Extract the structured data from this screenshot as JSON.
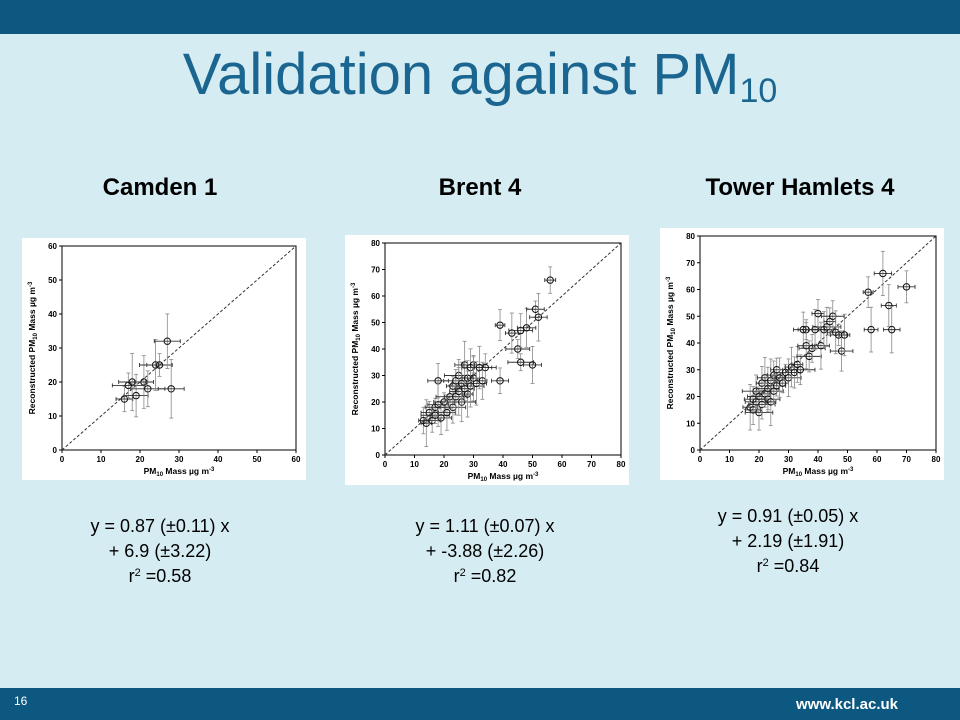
{
  "slide": {
    "title_main": "Validation against PM",
    "title_sub": "10",
    "page_number": "16",
    "url": "www.kcl.ac.uk"
  },
  "chart_data": [
    {
      "type": "scatter",
      "title": "Camden 1",
      "xlabel_pre": "PM",
      "xlabel_sub": "10",
      "xlabel_post": " Mass µg m",
      "xlabel_sup": "-3",
      "ylabel_pre": "Reconstructed PM",
      "ylabel_sub": "10",
      "ylabel_post": " Mass µg m",
      "ylabel_sup": "-3",
      "xlim": [
        0,
        60
      ],
      "ylim": [
        0,
        60
      ],
      "xticks": [
        0,
        10,
        20,
        30,
        40,
        50,
        60
      ],
      "yticks": [
        0,
        10,
        20,
        30,
        40,
        50,
        60
      ],
      "one_to_one_line": true,
      "points": [
        {
          "x": 16,
          "y": 15
        },
        {
          "x": 17,
          "y": 19
        },
        {
          "x": 18,
          "y": 20
        },
        {
          "x": 19,
          "y": 16
        },
        {
          "x": 21,
          "y": 20
        },
        {
          "x": 22,
          "y": 18
        },
        {
          "x": 24,
          "y": 25
        },
        {
          "x": 25,
          "y": 25
        },
        {
          "x": 27,
          "y": 32
        },
        {
          "x": 28,
          "y": 18
        }
      ],
      "equation": {
        "line1": "y = 0.87 (±0.11) x",
        "line2": "+ 6.9 (±3.22)",
        "r_pre": "r",
        "r_sup": "2",
        "r_post": " =0.58"
      }
    },
    {
      "type": "scatter",
      "title": "Brent 4",
      "xlabel_pre": "PM",
      "xlabel_sub": "10",
      "xlabel_post": " Mass µg m",
      "xlabel_sup": "-3",
      "ylabel_pre": "Reconstructed PM",
      "ylabel_sub": "10",
      "ylabel_post": " Mass µg m",
      "ylabel_sup": "-3",
      "xlim": [
        0,
        80
      ],
      "ylim": [
        0,
        80
      ],
      "xticks": [
        0,
        10,
        20,
        30,
        40,
        50,
        60,
        70,
        80
      ],
      "yticks": [
        0,
        10,
        20,
        30,
        40,
        50,
        60,
        70,
        80
      ],
      "one_to_one_line": true,
      "points": [
        {
          "x": 13,
          "y": 13
        },
        {
          "x": 14,
          "y": 12
        },
        {
          "x": 15,
          "y": 16
        },
        {
          "x": 16,
          "y": 13
        },
        {
          "x": 17,
          "y": 15
        },
        {
          "x": 17,
          "y": 18
        },
        {
          "x": 18,
          "y": 28
        },
        {
          "x": 18,
          "y": 19
        },
        {
          "x": 19,
          "y": 14
        },
        {
          "x": 20,
          "y": 20
        },
        {
          "x": 21,
          "y": 16
        },
        {
          "x": 22,
          "y": 22
        },
        {
          "x": 23,
          "y": 18
        },
        {
          "x": 23,
          "y": 26
        },
        {
          "x": 24,
          "y": 28
        },
        {
          "x": 24,
          "y": 22
        },
        {
          "x": 25,
          "y": 30
        },
        {
          "x": 25,
          "y": 24
        },
        {
          "x": 26,
          "y": 20
        },
        {
          "x": 26,
          "y": 27
        },
        {
          "x": 27,
          "y": 34
        },
        {
          "x": 27,
          "y": 25
        },
        {
          "x": 28,
          "y": 29
        },
        {
          "x": 28,
          "y": 23
        },
        {
          "x": 29,
          "y": 33
        },
        {
          "x": 29,
          "y": 26
        },
        {
          "x": 30,
          "y": 34
        },
        {
          "x": 30,
          "y": 29
        },
        {
          "x": 31,
          "y": 27
        },
        {
          "x": 32,
          "y": 33
        },
        {
          "x": 33,
          "y": 28
        },
        {
          "x": 34,
          "y": 33
        },
        {
          "x": 39,
          "y": 49
        },
        {
          "x": 39,
          "y": 28
        },
        {
          "x": 43,
          "y": 46
        },
        {
          "x": 45,
          "y": 40
        },
        {
          "x": 46,
          "y": 47
        },
        {
          "x": 46,
          "y": 35
        },
        {
          "x": 48,
          "y": 48
        },
        {
          "x": 50,
          "y": 34
        },
        {
          "x": 51,
          "y": 55
        },
        {
          "x": 52,
          "y": 52
        },
        {
          "x": 56,
          "y": 66
        }
      ],
      "equation": {
        "line1": "y = 1.11 (±0.07) x",
        "line2": "+ -3.88 (±2.26)",
        "r_pre": "r",
        "r_sup": "2",
        "r_post": " =0.82"
      }
    },
    {
      "type": "scatter",
      "title": "Tower Hamlets 4",
      "xlabel_pre": "PM",
      "xlabel_sub": "10",
      "xlabel_post": " Mass µg m",
      "xlabel_sup": "-3",
      "ylabel_pre": "Reconstructed PM",
      "ylabel_sub": "10",
      "ylabel_post": " Mass µg m",
      "ylabel_sup": "-3",
      "xlim": [
        0,
        80
      ],
      "ylim": [
        0,
        80
      ],
      "xticks": [
        0,
        10,
        20,
        30,
        40,
        50,
        60,
        70,
        80
      ],
      "yticks": [
        0,
        10,
        20,
        30,
        40,
        50,
        60,
        70,
        80
      ],
      "one_to_one_line": true,
      "points": [
        {
          "x": 17,
          "y": 16
        },
        {
          "x": 18,
          "y": 19
        },
        {
          "x": 18,
          "y": 15
        },
        {
          "x": 19,
          "y": 22
        },
        {
          "x": 19,
          "y": 18
        },
        {
          "x": 20,
          "y": 14
        },
        {
          "x": 20,
          "y": 20
        },
        {
          "x": 21,
          "y": 25
        },
        {
          "x": 21,
          "y": 17
        },
        {
          "x": 22,
          "y": 21
        },
        {
          "x": 22,
          "y": 27
        },
        {
          "x": 23,
          "y": 19
        },
        {
          "x": 23,
          "y": 23
        },
        {
          "x": 24,
          "y": 26
        },
        {
          "x": 24,
          "y": 18
        },
        {
          "x": 25,
          "y": 28
        },
        {
          "x": 25,
          "y": 22
        },
        {
          "x": 26,
          "y": 24
        },
        {
          "x": 26,
          "y": 30
        },
        {
          "x": 27,
          "y": 27
        },
        {
          "x": 28,
          "y": 25
        },
        {
          "x": 29,
          "y": 29
        },
        {
          "x": 30,
          "y": 27
        },
        {
          "x": 31,
          "y": 31
        },
        {
          "x": 32,
          "y": 29
        },
        {
          "x": 33,
          "y": 32
        },
        {
          "x": 34,
          "y": 30
        },
        {
          "x": 35,
          "y": 45
        },
        {
          "x": 36,
          "y": 45
        },
        {
          "x": 36,
          "y": 39
        },
        {
          "x": 37,
          "y": 35
        },
        {
          "x": 38,
          "y": 38
        },
        {
          "x": 39,
          "y": 45
        },
        {
          "x": 40,
          "y": 51
        },
        {
          "x": 41,
          "y": 39
        },
        {
          "x": 42,
          "y": 45
        },
        {
          "x": 43,
          "y": 46
        },
        {
          "x": 44,
          "y": 48
        },
        {
          "x": 45,
          "y": 50
        },
        {
          "x": 46,
          "y": 44
        },
        {
          "x": 47,
          "y": 43
        },
        {
          "x": 48,
          "y": 37
        },
        {
          "x": 49,
          "y": 43
        },
        {
          "x": 57,
          "y": 59
        },
        {
          "x": 58,
          "y": 45
        },
        {
          "x": 62,
          "y": 66
        },
        {
          "x": 64,
          "y": 54
        },
        {
          "x": 65,
          "y": 45
        },
        {
          "x": 70,
          "y": 61
        }
      ],
      "equation": {
        "line1": "y = 0.91 (±0.05) x",
        "line2": "+ 2.19 (±1.91)",
        "r_pre": "r",
        "r_sup": "2",
        "r_post": " =0.84"
      }
    }
  ]
}
